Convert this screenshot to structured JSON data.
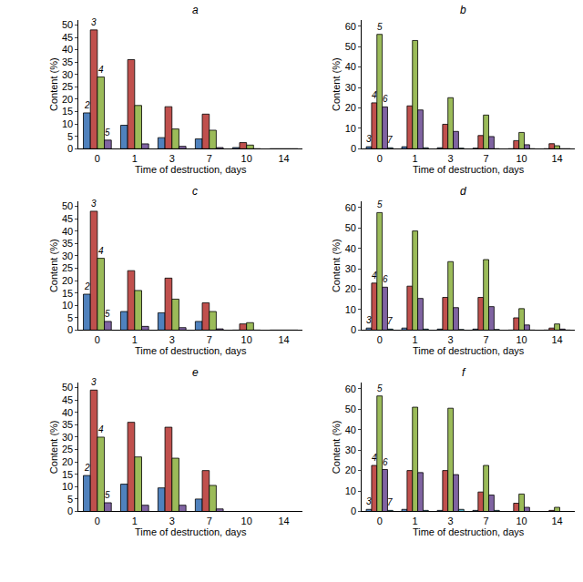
{
  "chart_data": [
    {
      "type": "bar",
      "title": "a",
      "x_label": "Time of destruction, days",
      "y_label": "Content (%)",
      "categories": [
        "0",
        "1",
        "3",
        "7",
        "10",
        "14"
      ],
      "series": [
        {
          "name": "2",
          "color": "#4f81bd",
          "values": [
            14.5,
            9.5,
            4.5,
            4,
            0.5,
            0
          ]
        },
        {
          "name": "3",
          "color": "#c0504d",
          "values": [
            48,
            36,
            17,
            14,
            2.5,
            0
          ]
        },
        {
          "name": "4",
          "color": "#9bbb59",
          "values": [
            29,
            17.5,
            8,
            7.5,
            1.5,
            0
          ]
        },
        {
          "name": "5",
          "color": "#8064a2",
          "values": [
            3.5,
            2,
            1,
            0.5,
            0,
            0
          ]
        }
      ],
      "ylim": [
        0,
        52
      ],
      "yticks": [
        0,
        5,
        10,
        15,
        20,
        25,
        30,
        35,
        40,
        45,
        50
      ],
      "grid": false
    },
    {
      "type": "bar",
      "title": "b",
      "x_label": "Time of destruction, days",
      "y_label": "Content (%)",
      "categories": [
        "0",
        "1",
        "3",
        "7",
        "10",
        "14"
      ],
      "series": [
        {
          "name": "3",
          "color": "#4f81bd",
          "values": [
            1,
            1,
            0.5,
            0.3,
            0,
            0
          ]
        },
        {
          "name": "4",
          "color": "#c0504d",
          "values": [
            22.5,
            21,
            12,
            6.5,
            4,
            2.5
          ]
        },
        {
          "name": "5",
          "color": "#9bbb59",
          "values": [
            56,
            53,
            25,
            16.5,
            8,
            1.5
          ]
        },
        {
          "name": "6",
          "color": "#8064a2",
          "values": [
            20.5,
            19,
            8.5,
            6,
            2,
            0
          ]
        },
        {
          "name": "7",
          "color": "#4bacc6",
          "values": [
            0.5,
            0.5,
            0.3,
            0,
            0,
            0
          ]
        }
      ],
      "ylim": [
        0,
        63
      ],
      "yticks": [
        0,
        10,
        20,
        30,
        40,
        50,
        60
      ],
      "grid": false
    },
    {
      "type": "bar",
      "title": "c",
      "x_label": "Time of destruction, days",
      "y_label": "Content (%)",
      "categories": [
        "0",
        "1",
        "3",
        "7",
        "10",
        "14"
      ],
      "series": [
        {
          "name": "2",
          "color": "#4f81bd",
          "values": [
            14.5,
            7.5,
            7,
            3.5,
            0,
            0
          ]
        },
        {
          "name": "3",
          "color": "#c0504d",
          "values": [
            48,
            24,
            21,
            11,
            2.5,
            0
          ]
        },
        {
          "name": "4",
          "color": "#9bbb59",
          "values": [
            29,
            16,
            12.5,
            7.5,
            3,
            0
          ]
        },
        {
          "name": "5",
          "color": "#8064a2",
          "values": [
            3.5,
            1.5,
            1,
            0.5,
            0,
            0
          ]
        }
      ],
      "ylim": [
        0,
        52
      ],
      "yticks": [
        0,
        5,
        10,
        15,
        20,
        25,
        30,
        35,
        40,
        45,
        50
      ],
      "grid": false
    },
    {
      "type": "bar",
      "title": "d",
      "x_label": "Time of destruction, days",
      "y_label": "Content (%)",
      "categories": [
        "0",
        "1",
        "3",
        "7",
        "10",
        "14"
      ],
      "series": [
        {
          "name": "3",
          "color": "#4f81bd",
          "values": [
            1,
            1,
            0.5,
            0.5,
            0,
            0
          ]
        },
        {
          "name": "4",
          "color": "#c0504d",
          "values": [
            23,
            21.5,
            16,
            16,
            6,
            1
          ]
        },
        {
          "name": "5",
          "color": "#9bbb59",
          "values": [
            57.5,
            48.5,
            33.5,
            34.5,
            10.5,
            3
          ]
        },
        {
          "name": "6",
          "color": "#8064a2",
          "values": [
            21,
            15.5,
            11,
            11.5,
            2.5,
            0.5
          ]
        },
        {
          "name": "7",
          "color": "#4bacc6",
          "values": [
            0.5,
            0.5,
            0.3,
            0.3,
            0,
            0
          ]
        }
      ],
      "ylim": [
        0,
        63
      ],
      "yticks": [
        0,
        10,
        20,
        30,
        40,
        50,
        60
      ],
      "grid": false
    },
    {
      "type": "bar",
      "title": "e",
      "x_label": "Time of destruction, days",
      "y_label": "Content (%)",
      "categories": [
        "0",
        "1",
        "3",
        "7",
        "10",
        "14"
      ],
      "series": [
        {
          "name": "2",
          "color": "#4f81bd",
          "values": [
            14.5,
            11,
            9.5,
            5,
            0,
            0
          ]
        },
        {
          "name": "3",
          "color": "#c0504d",
          "values": [
            49,
            36,
            34,
            16.5,
            0,
            0
          ]
        },
        {
          "name": "4",
          "color": "#9bbb59",
          "values": [
            30,
            22,
            21.5,
            10.5,
            0,
            0
          ]
        },
        {
          "name": "5",
          "color": "#8064a2",
          "values": [
            3.5,
            2.5,
            2.5,
            1,
            0,
            0
          ]
        }
      ],
      "ylim": [
        0,
        52
      ],
      "yticks": [
        0,
        5,
        10,
        15,
        20,
        25,
        30,
        35,
        40,
        45,
        50
      ],
      "grid": false
    },
    {
      "type": "bar",
      "title": "f",
      "x_label": "Time of destruction, days",
      "y_label": "Content (%)",
      "categories": [
        "0",
        "1",
        "3",
        "7",
        "10",
        "14"
      ],
      "series": [
        {
          "name": "3",
          "color": "#4f81bd",
          "values": [
            1,
            1,
            0.5,
            0.5,
            0,
            0
          ]
        },
        {
          "name": "4",
          "color": "#c0504d",
          "values": [
            22.5,
            20,
            20,
            9.5,
            4,
            0.5
          ]
        },
        {
          "name": "5",
          "color": "#9bbb59",
          "values": [
            56.5,
            51,
            50.5,
            22.5,
            8.5,
            2
          ]
        },
        {
          "name": "6",
          "color": "#8064a2",
          "values": [
            20.5,
            19,
            18,
            8,
            2,
            0
          ]
        },
        {
          "name": "7",
          "color": "#4bacc6",
          "values": [
            0.5,
            0.5,
            1,
            0.5,
            0,
            0
          ]
        }
      ],
      "ylim": [
        0,
        63
      ],
      "yticks": [
        0,
        10,
        20,
        30,
        40,
        50,
        60
      ],
      "grid": false
    }
  ]
}
